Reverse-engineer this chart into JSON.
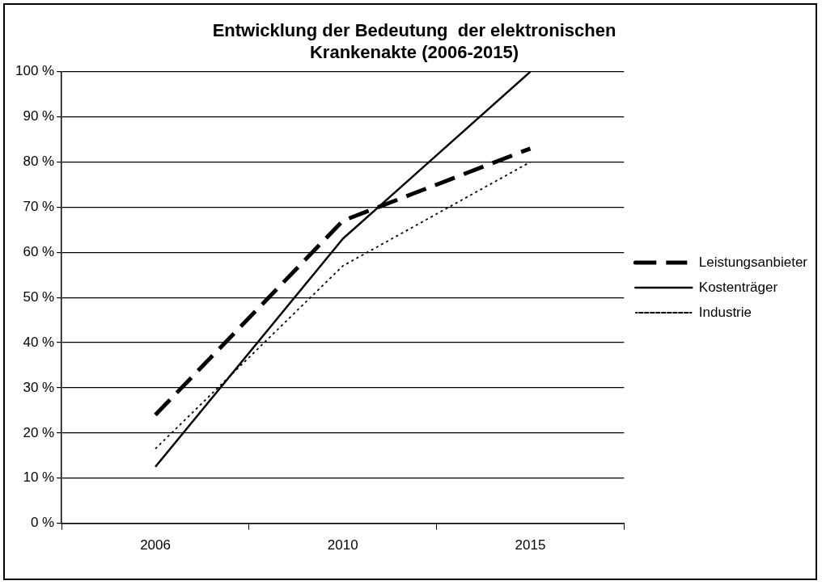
{
  "chart_data": {
    "type": "line",
    "title": "Entwicklung der Bedeutung  der elektronischen\nKrankenakte (2006-2015)",
    "categories": [
      "2006",
      "2010",
      "2015"
    ],
    "series": [
      {
        "name": "Leistungsanbieter",
        "color": "#000000",
        "line_style": "dashed",
        "values": [
          24,
          67,
          83
        ]
      },
      {
        "name": "Kostenträger",
        "color": "#000000",
        "line_style": "solid",
        "values": [
          12.5,
          63,
          100
        ]
      },
      {
        "name": "Industrie",
        "color": "#000000",
        "line_style": "dotted",
        "values": [
          16.5,
          57,
          80
        ]
      }
    ],
    "ylim": [
      0,
      100
    ],
    "yticks": [
      {
        "value": 0,
        "label": "0 %"
      },
      {
        "value": 10,
        "label": "10 %"
      },
      {
        "value": 20,
        "label": "20 %"
      },
      {
        "value": 30,
        "label": "30 %"
      },
      {
        "value": 40,
        "label": "40 %"
      },
      {
        "value": 50,
        "label": "50 %"
      },
      {
        "value": 60,
        "label": "60 %"
      },
      {
        "value": 70,
        "label": "70 %"
      },
      {
        "value": 80,
        "label": "80 %"
      },
      {
        "value": 90,
        "label": "90 %"
      },
      {
        "value": 100,
        "label": "100 %"
      }
    ],
    "grid": "y",
    "legend": "right",
    "marker": "none"
  }
}
